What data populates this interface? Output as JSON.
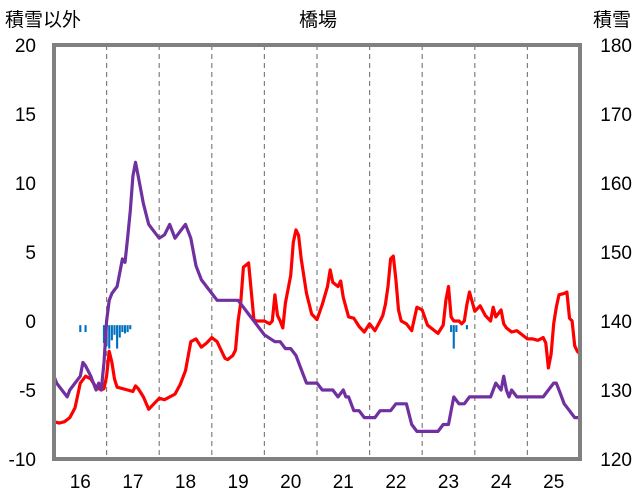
{
  "chart_data": {
    "type": "line",
    "title": "橋場",
    "y_left_label": "積雪以外",
    "y_right_label": "積雪",
    "y_left_range": [
      -10,
      20
    ],
    "y_left_ticks": [
      "-10",
      "-5",
      "0",
      "5",
      "10",
      "15",
      "20"
    ],
    "y_right_range": [
      120,
      180
    ],
    "y_right_ticks": [
      "120",
      "130",
      "140",
      "150",
      "160",
      "170",
      "180"
    ],
    "x_range": [
      15.5,
      25.5
    ],
    "x_ticks": [
      "16",
      "17",
      "18",
      "19",
      "20",
      "21",
      "22",
      "23",
      "24",
      "25"
    ],
    "grid": "vertical dashed",
    "colors": {
      "temperature": "#ff0000",
      "snow_depth": "#7030a0",
      "precipitation": "#0070c0",
      "frame": "#808080"
    },
    "series": [
      {
        "axis": "left",
        "color": "#ff0000",
        "points": [
          [
            15.5,
            -7.3
          ],
          [
            15.6,
            -7.4
          ],
          [
            15.7,
            -7.3
          ],
          [
            15.8,
            -7.0
          ],
          [
            15.9,
            -6.3
          ],
          [
            16.0,
            -4.5
          ],
          [
            16.1,
            -4.0
          ],
          [
            16.2,
            -4.2
          ],
          [
            16.3,
            -4.8
          ],
          [
            16.4,
            -5.0
          ],
          [
            16.45,
            -4.9
          ],
          [
            16.5,
            -4.0
          ],
          [
            16.55,
            -2.2
          ],
          [
            16.6,
            -3.0
          ],
          [
            16.65,
            -4.2
          ],
          [
            16.7,
            -4.8
          ],
          [
            16.8,
            -4.9
          ],
          [
            16.9,
            -5.0
          ],
          [
            17.0,
            -5.1
          ],
          [
            17.05,
            -4.7
          ],
          [
            17.1,
            -4.9
          ],
          [
            17.2,
            -5.5
          ],
          [
            17.3,
            -6.4
          ],
          [
            17.4,
            -6.0
          ],
          [
            17.5,
            -5.6
          ],
          [
            17.6,
            -5.7
          ],
          [
            17.8,
            -5.3
          ],
          [
            17.9,
            -4.6
          ],
          [
            18.0,
            -3.6
          ],
          [
            18.1,
            -1.5
          ],
          [
            18.2,
            -1.3
          ],
          [
            18.3,
            -1.9
          ],
          [
            18.4,
            -1.6
          ],
          [
            18.5,
            -1.2
          ],
          [
            18.6,
            -1.5
          ],
          [
            18.7,
            -2.3
          ],
          [
            18.75,
            -2.7
          ],
          [
            18.8,
            -2.8
          ],
          [
            18.9,
            -2.5
          ],
          [
            18.95,
            -2.1
          ],
          [
            19.0,
            0.0
          ],
          [
            19.05,
            1.3
          ],
          [
            19.1,
            3.9
          ],
          [
            19.2,
            4.2
          ],
          [
            19.3,
            0.1
          ],
          [
            19.35,
            0.0
          ],
          [
            19.5,
            0.0
          ],
          [
            19.6,
            -0.2
          ],
          [
            19.65,
            0.0
          ],
          [
            19.7,
            1.9
          ],
          [
            19.75,
            0.4
          ],
          [
            19.8,
            0.0
          ],
          [
            19.85,
            -0.5
          ],
          [
            19.9,
            1.3
          ],
          [
            20.0,
            3.3
          ],
          [
            20.05,
            5.7
          ],
          [
            20.1,
            6.6
          ],
          [
            20.15,
            6.2
          ],
          [
            20.2,
            4.5
          ],
          [
            20.3,
            2.0
          ],
          [
            20.4,
            0.5
          ],
          [
            20.5,
            0.1
          ],
          [
            20.6,
            1.2
          ],
          [
            20.7,
            2.5
          ],
          [
            20.75,
            3.7
          ],
          [
            20.8,
            2.8
          ],
          [
            20.9,
            2.5
          ],
          [
            20.95,
            2.9
          ],
          [
            21.0,
            1.7
          ],
          [
            21.1,
            0.3
          ],
          [
            21.2,
            0.2
          ],
          [
            21.3,
            -0.4
          ],
          [
            21.4,
            -0.8
          ],
          [
            21.5,
            -0.2
          ],
          [
            21.6,
            -0.7
          ],
          [
            21.7,
            0.0
          ],
          [
            21.75,
            0.4
          ],
          [
            21.8,
            1.2
          ],
          [
            21.85,
            2.5
          ],
          [
            21.9,
            4.5
          ],
          [
            21.95,
            4.7
          ],
          [
            22.0,
            3.0
          ],
          [
            22.05,
            0.8
          ],
          [
            22.1,
            0.0
          ],
          [
            22.2,
            -0.2
          ],
          [
            22.3,
            -0.7
          ],
          [
            22.4,
            1.0
          ],
          [
            22.5,
            0.8
          ],
          [
            22.6,
            -0.3
          ],
          [
            22.7,
            -0.6
          ],
          [
            22.8,
            -0.9
          ],
          [
            22.9,
            -0.3
          ],
          [
            22.95,
            1.5
          ],
          [
            23.0,
            2.5
          ],
          [
            23.05,
            0.3
          ],
          [
            23.1,
            0.0
          ],
          [
            23.2,
            0.0
          ],
          [
            23.25,
            -0.2
          ],
          [
            23.3,
            0.0
          ],
          [
            23.35,
            1.2
          ],
          [
            23.4,
            2.1
          ],
          [
            23.5,
            0.7
          ],
          [
            23.6,
            1.1
          ],
          [
            23.7,
            0.4
          ],
          [
            23.8,
            0.0
          ],
          [
            23.85,
            1.0
          ],
          [
            23.9,
            0.3
          ],
          [
            24.0,
            0.8
          ],
          [
            24.05,
            -0.2
          ],
          [
            24.1,
            -0.5
          ],
          [
            24.2,
            -0.8
          ],
          [
            24.3,
            -0.7
          ],
          [
            24.4,
            -1.0
          ],
          [
            24.5,
            -1.3
          ],
          [
            24.6,
            -1.3
          ],
          [
            24.7,
            -1.4
          ],
          [
            24.8,
            -1.2
          ],
          [
            24.85,
            -1.6
          ],
          [
            24.9,
            -3.4
          ],
          [
            24.95,
            -2.4
          ],
          [
            25.0,
            -0.2
          ],
          [
            25.05,
            1.0
          ],
          [
            25.1,
            1.9
          ],
          [
            25.2,
            2.0
          ],
          [
            25.25,
            2.1
          ],
          [
            25.3,
            0.2
          ],
          [
            25.35,
            0.0
          ],
          [
            25.4,
            -1.8
          ],
          [
            25.45,
            -2.2
          ],
          [
            25.5,
            -2.4
          ]
        ]
      },
      {
        "axis": "right",
        "color": "#7030a0",
        "points": [
          [
            15.5,
            132.0
          ],
          [
            15.55,
            131.0
          ],
          [
            15.65,
            130.0
          ],
          [
            15.75,
            129.0
          ],
          [
            15.8,
            130.0
          ],
          [
            15.9,
            131.0
          ],
          [
            16.0,
            132.0
          ],
          [
            16.05,
            134.0
          ],
          [
            16.1,
            133.5
          ],
          [
            16.2,
            132.0
          ],
          [
            16.25,
            131.0
          ],
          [
            16.3,
            130.0
          ],
          [
            16.35,
            131.0
          ],
          [
            16.4,
            130.0
          ],
          [
            16.45,
            134.0
          ],
          [
            16.5,
            140.0
          ],
          [
            16.55,
            143.0
          ],
          [
            16.6,
            144.0
          ],
          [
            16.7,
            145.0
          ],
          [
            16.75,
            147.0
          ],
          [
            16.8,
            149.0
          ],
          [
            16.85,
            148.5
          ],
          [
            16.9,
            152.0
          ],
          [
            16.95,
            156.0
          ],
          [
            17.0,
            161.0
          ],
          [
            17.05,
            163.0
          ],
          [
            17.1,
            161.0
          ],
          [
            17.2,
            157.0
          ],
          [
            17.3,
            154.0
          ],
          [
            17.4,
            153.0
          ],
          [
            17.5,
            152.0
          ],
          [
            17.6,
            152.5
          ],
          [
            17.7,
            154.0
          ],
          [
            17.8,
            152.0
          ],
          [
            17.9,
            153.0
          ],
          [
            18.0,
            154.0
          ],
          [
            18.1,
            152.0
          ],
          [
            18.2,
            148.0
          ],
          [
            18.3,
            146.0
          ],
          [
            18.4,
            145.0
          ],
          [
            18.5,
            144.0
          ],
          [
            18.6,
            143.0
          ],
          [
            18.7,
            143.0
          ],
          [
            18.8,
            143.0
          ],
          [
            18.9,
            143.0
          ],
          [
            19.0,
            143.0
          ],
          [
            19.1,
            142.0
          ],
          [
            19.2,
            141.0
          ],
          [
            19.3,
            140.0
          ],
          [
            19.4,
            139.0
          ],
          [
            19.5,
            138.0
          ],
          [
            19.6,
            137.5
          ],
          [
            19.7,
            137.0
          ],
          [
            19.8,
            137.0
          ],
          [
            19.9,
            136.0
          ],
          [
            20.0,
            136.0
          ],
          [
            20.1,
            135.0
          ],
          [
            20.2,
            133.0
          ],
          [
            20.3,
            131.0
          ],
          [
            20.4,
            131.0
          ],
          [
            20.5,
            131.0
          ],
          [
            20.6,
            130.0
          ],
          [
            20.7,
            130.0
          ],
          [
            20.8,
            130.0
          ],
          [
            20.9,
            129.0
          ],
          [
            21.0,
            130.0
          ],
          [
            21.05,
            129.0
          ],
          [
            21.1,
            129.0
          ],
          [
            21.2,
            127.0
          ],
          [
            21.3,
            127.0
          ],
          [
            21.4,
            126.0
          ],
          [
            21.5,
            126.0
          ],
          [
            21.6,
            126.0
          ],
          [
            21.7,
            127.0
          ],
          [
            21.8,
            127.0
          ],
          [
            21.9,
            127.0
          ],
          [
            22.0,
            128.0
          ],
          [
            22.1,
            128.0
          ],
          [
            22.2,
            128.0
          ],
          [
            22.3,
            125.0
          ],
          [
            22.4,
            124.0
          ],
          [
            22.5,
            124.0
          ],
          [
            22.6,
            124.0
          ],
          [
            22.7,
            124.0
          ],
          [
            22.8,
            124.0
          ],
          [
            22.9,
            125.0
          ],
          [
            23.0,
            125.0
          ],
          [
            23.05,
            127.0
          ],
          [
            23.1,
            129.0
          ],
          [
            23.2,
            128.0
          ],
          [
            23.3,
            128.0
          ],
          [
            23.4,
            129.0
          ],
          [
            23.5,
            129.0
          ],
          [
            23.6,
            129.0
          ],
          [
            23.7,
            129.0
          ],
          [
            23.8,
            129.0
          ],
          [
            23.9,
            131.0
          ],
          [
            24.0,
            130.0
          ],
          [
            24.05,
            132.0
          ],
          [
            24.1,
            130.0
          ],
          [
            24.15,
            129.0
          ],
          [
            24.2,
            130.0
          ],
          [
            24.3,
            129.0
          ],
          [
            24.4,
            129.0
          ],
          [
            24.5,
            129.0
          ],
          [
            24.6,
            129.0
          ],
          [
            24.7,
            129.0
          ],
          [
            24.8,
            129.0
          ],
          [
            24.9,
            130.0
          ],
          [
            25.0,
            131.0
          ],
          [
            25.05,
            131.0
          ],
          [
            25.1,
            130.0
          ],
          [
            25.2,
            128.0
          ],
          [
            25.3,
            127.0
          ],
          [
            25.4,
            126.0
          ],
          [
            25.5,
            126.0
          ]
        ]
      }
    ],
    "bars": {
      "axis": "left",
      "color": "#0070c0",
      "baseline": -0.3,
      "items": [
        [
          16.0,
          -0.8
        ],
        [
          16.1,
          -0.8
        ],
        [
          16.45,
          -1.6
        ],
        [
          16.5,
          -1.8
        ],
        [
          16.55,
          -2.0
        ],
        [
          16.6,
          -1.4
        ],
        [
          16.65,
          -1.0
        ],
        [
          16.7,
          -2.0
        ],
        [
          16.75,
          -1.2
        ],
        [
          16.8,
          -0.8
        ],
        [
          16.85,
          -0.9
        ],
        [
          16.9,
          -0.8
        ],
        [
          16.95,
          -0.6
        ],
        [
          23.05,
          -0.8
        ],
        [
          23.1,
          -2.0
        ],
        [
          23.15,
          -0.8
        ],
        [
          23.35,
          -0.6
        ]
      ]
    }
  }
}
